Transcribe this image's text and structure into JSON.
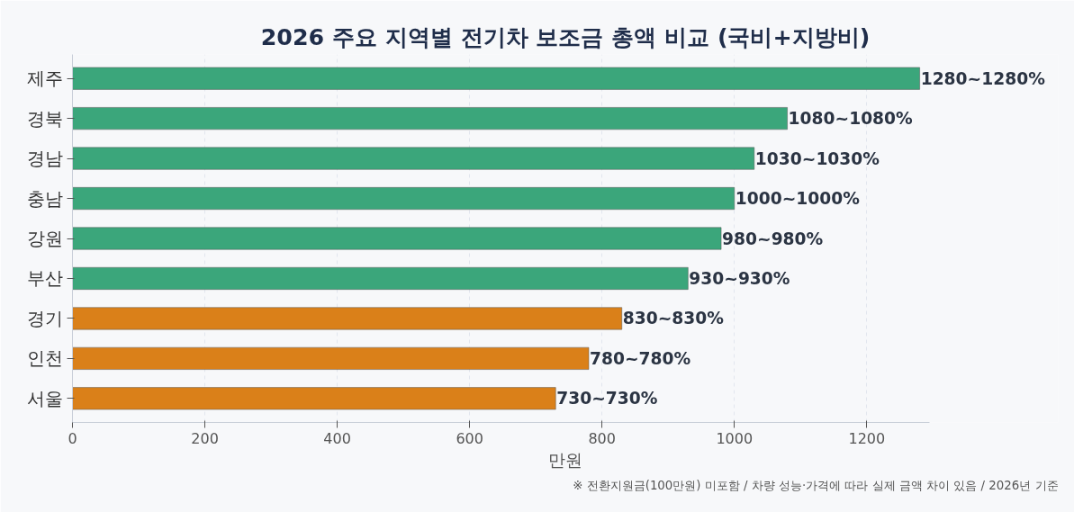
{
  "chart_data": {
    "type": "bar",
    "orientation": "horizontal",
    "title": "2026 주요 지역별 전기차 보조금 총액 비교 (국비+지방비)",
    "xlabel": "만원",
    "categories": [
      "제주",
      "경북",
      "경남",
      "충남",
      "강원",
      "부산",
      "경기",
      "인천",
      "서울"
    ],
    "values": [
      1280,
      1080,
      1030,
      1000,
      980,
      930,
      830,
      780,
      730
    ],
    "colors": [
      "#3ba67b",
      "#3ba67b",
      "#3ba67b",
      "#3ba67b",
      "#3ba67b",
      "#3ba67b",
      "#da8019",
      "#da8019",
      "#da8019"
    ],
    "value_labels": [
      "1280~1280%",
      "1080~1080%",
      "1030~1030%",
      "1000~1000%",
      "980~980%",
      "930~930%",
      "830~830%",
      "780~780%",
      "730~730%"
    ],
    "xlim": [
      0,
      1295
    ],
    "xticks": [
      0,
      200,
      400,
      600,
      800,
      1000,
      1200
    ],
    "grid": "x",
    "annotations": [
      "※ 전환지원금(100만원) 미포함 / 차량 성능·가격에 따라 실제 금액 차이 있음 / 2026년 기준"
    ]
  }
}
